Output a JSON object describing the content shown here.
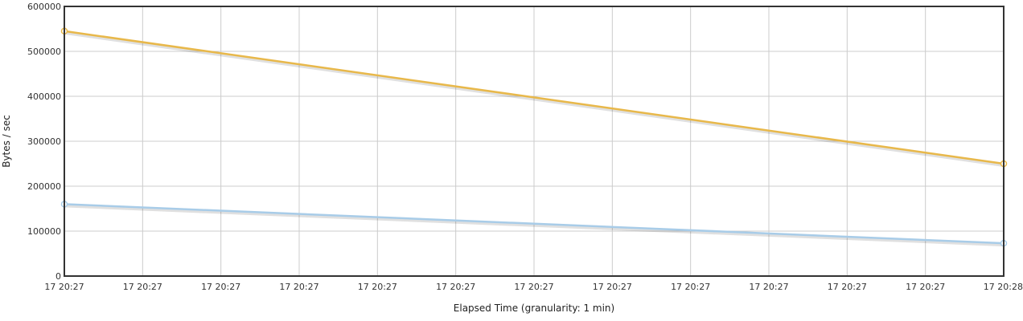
{
  "chart_data": {
    "type": "line",
    "xlabel": "Elapsed Time (granularity: 1 min)",
    "ylabel": "Bytes / sec",
    "ylim": [
      0,
      600000
    ],
    "y_ticks": [
      "0",
      "100000",
      "200000",
      "300000",
      "400000",
      "500000",
      "600000"
    ],
    "x_tick_labels": [
      "17 20:27",
      "17 20:27",
      "17 20:27",
      "17 20:27",
      "17 20:27",
      "17 20:27",
      "17 20:27",
      "17 20:27",
      "17 20:27",
      "17 20:27",
      "17 20:27",
      "17 20:27",
      "17 20:28"
    ],
    "x": [
      0,
      12
    ],
    "grid": true,
    "series": [
      {
        "color": "#e8b84a",
        "values": [
          545000,
          250000
        ]
      },
      {
        "color": "#a8cce8",
        "values": [
          160000,
          73000
        ]
      }
    ]
  }
}
